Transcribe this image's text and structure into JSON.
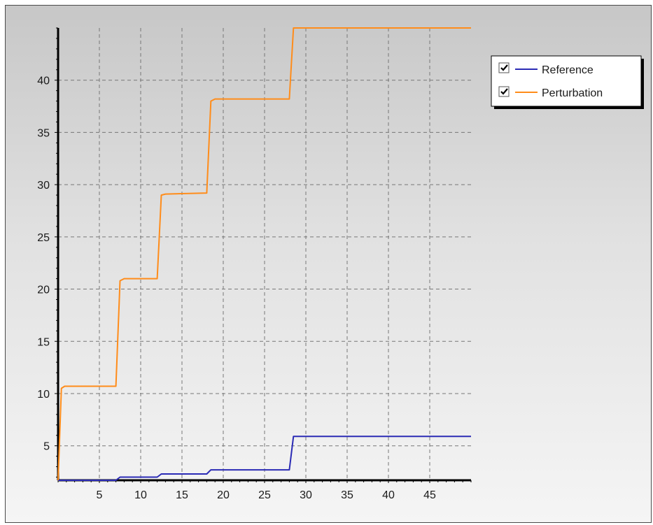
{
  "chart_data": {
    "type": "line",
    "step": true,
    "xlim": [
      0,
      50
    ],
    "ylim": [
      1.7,
      45
    ],
    "x_ticks": [
      5,
      10,
      15,
      20,
      25,
      30,
      35,
      40,
      45
    ],
    "y_ticks": [
      5,
      10,
      15,
      20,
      25,
      30,
      35,
      40
    ],
    "grid": true,
    "grid_style": "dashed",
    "legend_position": "top-right",
    "series": [
      {
        "name": "Reference",
        "color": "#2b2bb5",
        "checked": true,
        "points": [
          [
            0,
            1.7
          ],
          [
            7,
            1.7
          ],
          [
            7.5,
            2.0
          ],
          [
            12,
            2.0
          ],
          [
            12.5,
            2.3
          ],
          [
            18,
            2.3
          ],
          [
            18.5,
            2.7
          ],
          [
            28,
            2.7
          ],
          [
            28.5,
            5.9
          ],
          [
            50,
            5.9
          ]
        ]
      },
      {
        "name": "Perturbation",
        "color": "#ff8c1a",
        "checked": true,
        "points": [
          [
            0,
            1.7
          ],
          [
            0.4,
            10.5
          ],
          [
            0.8,
            10.7
          ],
          [
            7,
            10.7
          ],
          [
            7.5,
            20.8
          ],
          [
            8,
            21.0
          ],
          [
            12,
            21.0
          ],
          [
            12.5,
            29.0
          ],
          [
            13,
            29.1
          ],
          [
            18,
            29.2
          ],
          [
            18.5,
            38.0
          ],
          [
            19,
            38.2
          ],
          [
            28,
            38.2
          ],
          [
            28.5,
            45.0
          ],
          [
            50,
            45.0
          ]
        ]
      }
    ]
  }
}
